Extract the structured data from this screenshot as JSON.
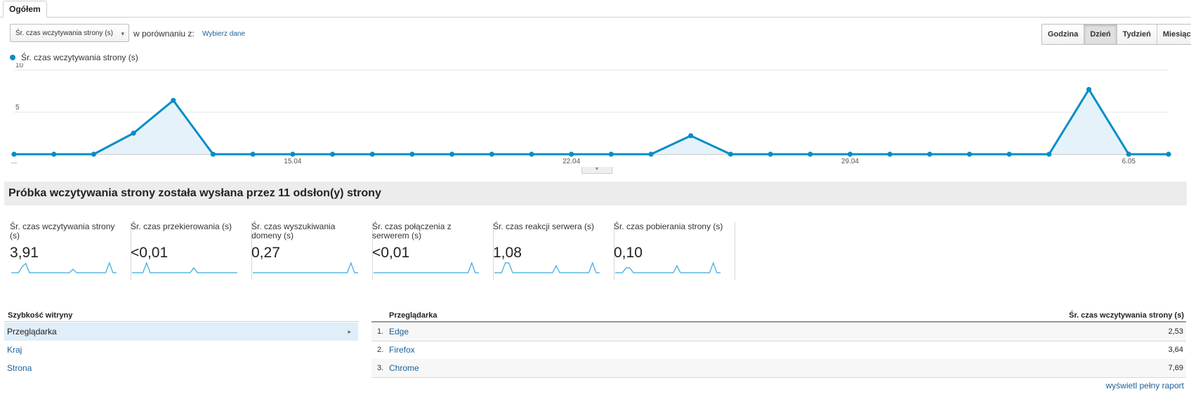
{
  "tab": {
    "label": "Ogółem"
  },
  "toolbar": {
    "metric_select": "Śr. czas wczytywania strony (s)",
    "compare_label": "w porównaniu z:",
    "compare_link": "Wybierz dane",
    "time_buttons": [
      "Godzina",
      "Dzień",
      "Tydzień",
      "Miesiąc"
    ],
    "active_time_button": "Dzień"
  },
  "legend": {
    "label": "Śr. czas wczytywania strony (s)",
    "color": "#058dc7"
  },
  "chart_data": {
    "type": "area",
    "series": [
      {
        "name": "Śr. czas wczytywania strony (s)",
        "values": [
          0,
          0,
          0,
          2.5,
          6.4,
          0,
          0,
          0,
          0,
          0,
          0,
          0,
          0,
          0,
          0,
          0,
          0,
          2.2,
          0,
          0,
          0,
          0,
          0,
          0,
          0,
          0,
          0,
          7.7,
          0,
          0
        ]
      }
    ],
    "x_tick_labels": [
      {
        "index": 0,
        "label": "..."
      },
      {
        "index": 7,
        "label": "15.04"
      },
      {
        "index": 14,
        "label": "22.04"
      },
      {
        "index": 21,
        "label": "29.04"
      },
      {
        "index": 28,
        "label": "6.05"
      }
    ],
    "y_ticks": [
      5,
      10
    ],
    "ylim": [
      0,
      10
    ],
    "grid": true,
    "color": "#058dc7"
  },
  "banner": {
    "text": "Próbka wczytywania strony została wysłana przez 11 odsłon(y) strony"
  },
  "scorecards": [
    {
      "title": "Śr. czas wczytywania strony (s)",
      "value": "3,91"
    },
    {
      "title": "Śr. czas przekierowania (s)",
      "value": "<0,01"
    },
    {
      "title": "Śr. czas wyszukiwania domeny (s)",
      "value": "0,27"
    },
    {
      "title": "Śr. czas połączenia z serwerem (s)",
      "value": "<0,01"
    },
    {
      "title": "Śr. czas reakcji serwera (s)",
      "value": "1,08"
    },
    {
      "title": "Śr. czas pobierania strony (s)",
      "value": "0,10"
    }
  ],
  "nav": {
    "heading": "Szybkość witryny",
    "items": [
      "Przeglądarka",
      "Kraj",
      "Strona"
    ],
    "selected": "Przeglądarka"
  },
  "table": {
    "col_left": "Przeglądarka",
    "col_right": "Śr. czas wczytywania strony (s)",
    "rows": [
      {
        "idx": "1.",
        "name": "Edge",
        "value": "2,53"
      },
      {
        "idx": "2.",
        "name": "Firefox",
        "value": "3,64"
      },
      {
        "idx": "3.",
        "name": "Chrome",
        "value": "7,69"
      }
    ]
  },
  "footer": {
    "full_report": "wyświetl pełny raport"
  }
}
